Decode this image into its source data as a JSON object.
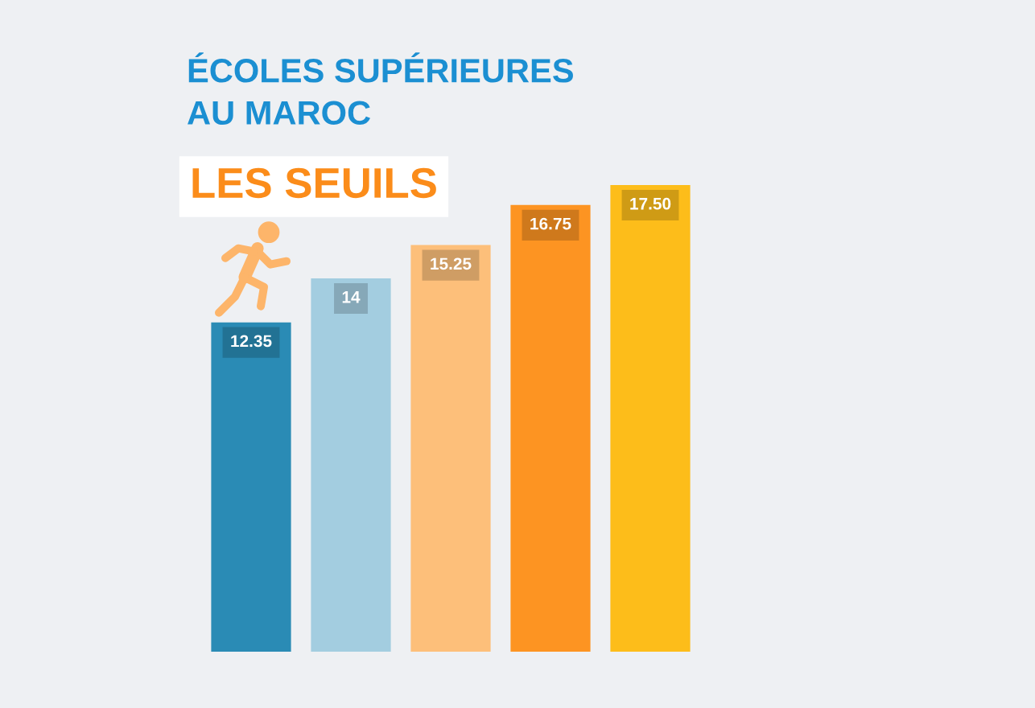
{
  "chart_data": {
    "type": "bar",
    "title": "ÉCOLES SUPÉRIEURES\nAU MAROC",
    "subtitle": "LES SEUILS",
    "categories": [
      null,
      null,
      null,
      null,
      null
    ],
    "values": [
      12.35,
      14,
      15.25,
      16.75,
      17.5
    ],
    "value_labels": [
      "12.35",
      "14",
      "15.25",
      "16.75",
      "17.50"
    ],
    "colors": [
      "#2a8bb5",
      "#a3cde0",
      "#fdbf7a",
      "#fd9422",
      "#fdbd1a"
    ],
    "tick_labels": false
  }
}
